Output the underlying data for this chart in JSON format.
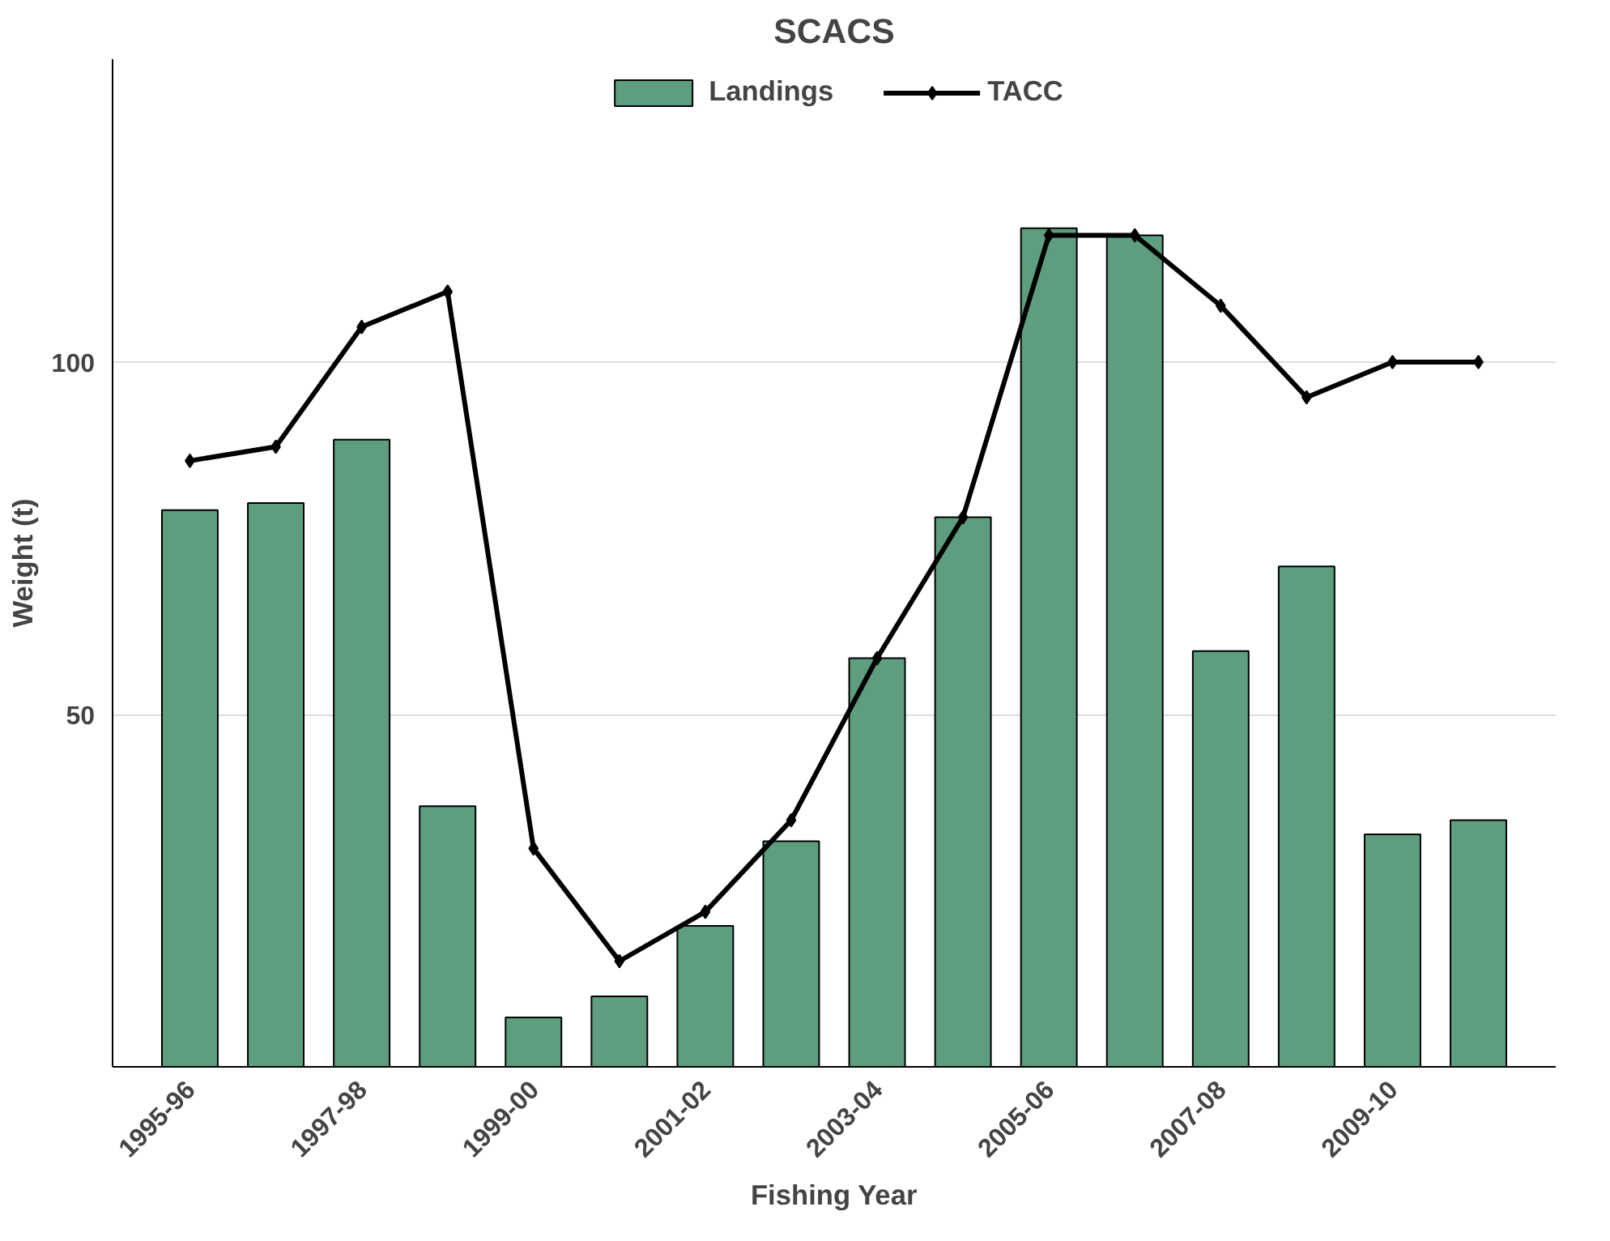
{
  "chart_data": {
    "type": "bar",
    "title": "SCACS",
    "xlabel": "Fishing Year",
    "ylabel": "Weight (t)",
    "categories": [
      "1995-96",
      null,
      "1997-98",
      null,
      "1999-00",
      null,
      "2001-02",
      null,
      "2003-04",
      null,
      "2005-06",
      null,
      "2007-08",
      null,
      "2009-10",
      null
    ],
    "series": [
      {
        "name": "Landings",
        "color": "#5e9e7e",
        "values": [
          79,
          80,
          89,
          37,
          7,
          10,
          20,
          32,
          58,
          78,
          119,
          118,
          59,
          71,
          33,
          35
        ]
      },
      {
        "name": "TACC",
        "type": "line",
        "color": "#000000",
        "marker": "diamond",
        "line_style": "solid",
        "values": [
          86,
          88,
          105,
          110,
          31,
          15,
          22,
          35,
          58,
          78,
          118,
          118,
          108,
          95,
          100,
          100
        ]
      }
    ],
    "ylim": [
      0,
      143
    ],
    "yticks": [
      50,
      100
    ],
    "grid": "y",
    "legend": "top"
  }
}
